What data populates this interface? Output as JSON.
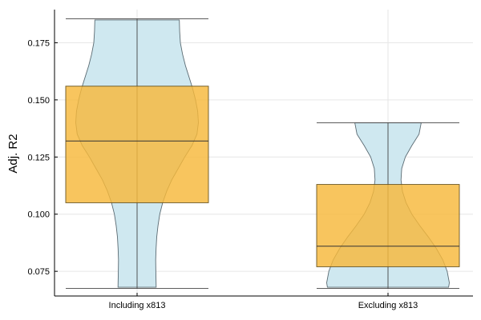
{
  "chart_data": {
    "type": "violin-box",
    "title": "",
    "xlabel": "",
    "ylabel": "Adj. R2",
    "ylim": [
      0.0642,
      0.1895
    ],
    "yticks": [
      {
        "value": 0.075,
        "label": "0.075"
      },
      {
        "value": 0.1,
        "label": "0.100"
      },
      {
        "value": 0.125,
        "label": "0.125"
      },
      {
        "value": 0.15,
        "label": "0.150"
      },
      {
        "value": 0.175,
        "label": "0.175"
      }
    ],
    "grid": true,
    "legend": "none",
    "colors": {
      "violin_fill": "#cfe8f0",
      "violin_stroke": "#5a6a72",
      "box_fill": "#f6b83a",
      "box_stroke": "#6b5520",
      "axis": "#000000",
      "grid": "#e6e6e6"
    },
    "categories": [
      "Including x813",
      "Excluding x813"
    ],
    "groups": [
      {
        "category": "Including x813",
        "min": 0.0675,
        "q1": 0.105,
        "median": 0.132,
        "q3": 0.156,
        "max": 0.1855,
        "violin_profile": [
          [
            0.068,
            0.265
          ],
          [
            0.07,
            0.263
          ],
          [
            0.075,
            0.26
          ],
          [
            0.08,
            0.258
          ],
          [
            0.085,
            0.263
          ],
          [
            0.09,
            0.272
          ],
          [
            0.095,
            0.29
          ],
          [
            0.1,
            0.315
          ],
          [
            0.105,
            0.355
          ],
          [
            0.11,
            0.41
          ],
          [
            0.115,
            0.48
          ],
          [
            0.12,
            0.57
          ],
          [
            0.125,
            0.66
          ],
          [
            0.13,
            0.76
          ],
          [
            0.135,
            0.83
          ],
          [
            0.14,
            0.85
          ],
          [
            0.145,
            0.84
          ],
          [
            0.15,
            0.81
          ],
          [
            0.155,
            0.77
          ],
          [
            0.16,
            0.72
          ],
          [
            0.165,
            0.67
          ],
          [
            0.17,
            0.63
          ],
          [
            0.175,
            0.6
          ],
          [
            0.18,
            0.59
          ],
          [
            0.185,
            0.585
          ]
        ]
      },
      {
        "category": "Excluding x813",
        "min": 0.0675,
        "q1": 0.077,
        "median": 0.086,
        "q3": 0.113,
        "max": 0.14,
        "violin_profile": [
          [
            0.068,
            0.84
          ],
          [
            0.07,
            0.85
          ],
          [
            0.075,
            0.82
          ],
          [
            0.08,
            0.76
          ],
          [
            0.085,
            0.67
          ],
          [
            0.09,
            0.56
          ],
          [
            0.095,
            0.44
          ],
          [
            0.1,
            0.33
          ],
          [
            0.105,
            0.25
          ],
          [
            0.11,
            0.2
          ],
          [
            0.115,
            0.18
          ],
          [
            0.12,
            0.19
          ],
          [
            0.125,
            0.24
          ],
          [
            0.13,
            0.33
          ],
          [
            0.135,
            0.43
          ],
          [
            0.14,
            0.46
          ]
        ]
      }
    ]
  }
}
